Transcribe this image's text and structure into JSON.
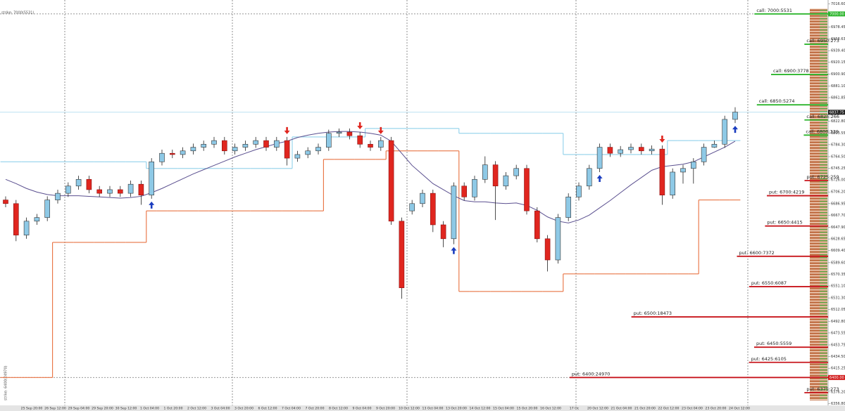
{
  "chart_data": {
    "type": "candlestick",
    "open": [
      6693,
      6687,
      6635,
      6658,
      6664,
      6693,
      6704,
      6716,
      6727,
      6710,
      6704,
      6710,
      6704,
      6719,
      6701,
      6756,
      6770,
      6768,
      6774,
      6780,
      6785,
      6791,
      6774,
      6780,
      6785,
      6791,
      6780,
      6791,
      6762,
      6768,
      6774,
      6780,
      6803,
      6805,
      6799,
      6785,
      6780,
      6791,
      6658,
      6675,
      6687,
      6704,
      6652,
      6629,
      6716,
      6698,
      6727,
      6751,
      6716,
      6733,
      6745,
      6675,
      6629,
      6594,
      6664,
      6698,
      6716,
      6745,
      6780,
      6770,
      6776,
      6780,
      6774,
      6777,
      6701,
      6739,
      6745,
      6756,
      6780,
      6785,
      6826
    ],
    "high": [
      6699,
      6693,
      6664,
      6670,
      6699,
      6710,
      6722,
      6733,
      6733,
      6716,
      6716,
      6716,
      6725,
      6725,
      6762,
      6776,
      6776,
      6780,
      6786,
      6791,
      6797,
      6797,
      6786,
      6791,
      6797,
      6797,
      6797,
      6797,
      6774,
      6780,
      6786,
      6809,
      6811,
      6811,
      6805,
      6791,
      6797,
      6797,
      6664,
      6693,
      6710,
      6710,
      6658,
      6722,
      6722,
      6733,
      6765,
      6757,
      6739,
      6751,
      6751,
      6681,
      6635,
      6670,
      6704,
      6722,
      6751,
      6786,
      6786,
      6782,
      6786,
      6786,
      6783,
      6783,
      6745,
      6751,
      6762,
      6786,
      6791,
      6832,
      6846
    ],
    "low": [
      6681,
      6625,
      6629,
      6652,
      6658,
      6687,
      6698,
      6710,
      6704,
      6698,
      6698,
      6698,
      6698,
      6685,
      6695,
      6750,
      6762,
      6762,
      6768,
      6774,
      6779,
      6768,
      6768,
      6774,
      6779,
      6774,
      6774,
      6750,
      6756,
      6762,
      6768,
      6774,
      6797,
      6793,
      6779,
      6774,
      6774,
      6652,
      6530,
      6669,
      6681,
      6640,
      6615,
      6620,
      6692,
      6692,
      6721,
      6660,
      6710,
      6727,
      6669,
      6623,
      6575,
      6588,
      6658,
      6692,
      6710,
      6739,
      6764,
      6764,
      6770,
      6768,
      6768,
      6685,
      6695,
      6720,
      6720,
      6750,
      6779,
      6779,
      6820
    ],
    "close": [
      6687,
      6635,
      6658,
      6664,
      6693,
      6704,
      6716,
      6727,
      6710,
      6704,
      6710,
      6704,
      6719,
      6701,
      6756,
      6770,
      6768,
      6774,
      6780,
      6785,
      6791,
      6774,
      6780,
      6785,
      6791,
      6780,
      6791,
      6762,
      6768,
      6774,
      6780,
      6803,
      6805,
      6799,
      6785,
      6780,
      6791,
      6658,
      6548,
      6687,
      6704,
      6652,
      6629,
      6716,
      6698,
      6727,
      6751,
      6716,
      6733,
      6745,
      6675,
      6629,
      6594,
      6664,
      6698,
      6716,
      6745,
      6780,
      6770,
      6776,
      6780,
      6774,
      6777,
      6701,
      6739,
      6745,
      6756,
      6780,
      6785,
      6826,
      6838
    ],
    "up_color": "#8ec9e6",
    "down_color": "#e0261f",
    "indicators": [
      {
        "color": "#e8703f",
        "style": "step",
        "values": [
          6400,
          6400,
          6400,
          6400,
          6400,
          6623,
          6623,
          6623,
          6623,
          6623,
          6623,
          6623,
          6623,
          6623,
          6675,
          6675,
          6675,
          6675,
          6675,
          6675,
          6675,
          6675,
          6675,
          6675,
          6675,
          6675,
          6675,
          6675,
          6675,
          6675,
          6675,
          6760,
          6760,
          6760,
          6760,
          6760,
          6760,
          6774,
          6774,
          6774,
          6774,
          6774,
          6774,
          6774,
          6542,
          6542,
          6542,
          6542,
          6542,
          6542,
          6542,
          6542,
          6542,
          6542,
          6571,
          6571,
          6571,
          6571,
          6571,
          6571,
          6571,
          6571,
          6571,
          6571,
          6571,
          6571,
          6571,
          6693,
          6693,
          6693,
          6693
        ]
      },
      {
        "color": "#8fd0ea",
        "style": "step",
        "values": [
          6756,
          6756,
          6756,
          6756,
          6756,
          6756,
          6756,
          6756,
          6756,
          6756,
          6756,
          6756,
          6756,
          6756,
          6745,
          6745,
          6745,
          6745,
          6745,
          6745,
          6745,
          6745,
          6745,
          6745,
          6745,
          6745,
          6745,
          6745,
          6797,
          6797,
          6797,
          6797,
          6797,
          6797,
          6797,
          6811,
          6811,
          6811,
          6811,
          6811,
          6811,
          6811,
          6811,
          6811,
          6803,
          6803,
          6803,
          6803,
          6803,
          6803,
          6803,
          6803,
          6803,
          6803,
          6768,
          6768,
          6768,
          6768,
          6768,
          6768,
          6768,
          6768,
          6768,
          6768,
          6791,
          6791,
          6791,
          6791,
          6791,
          6791,
          6791
        ]
      },
      {
        "color": "#5a4f8f",
        "style": "line",
        "values": [
          6727,
          6720,
          6712,
          6706,
          6702,
          6700,
          6700,
          6700,
          6699,
          6698,
          6697,
          6696,
          6697,
          6699,
          6705,
          6712,
          6720,
          6728,
          6736,
          6743,
          6750,
          6757,
          6764,
          6770,
          6776,
          6781,
          6786,
          6790,
          6796,
          6800,
          6803,
          6805,
          6806,
          6806,
          6805,
          6803,
          6800,
          6790,
          6770,
          6750,
          6735,
          6720,
          6710,
          6700,
          6692,
          6690,
          6690,
          6688,
          6687,
          6688,
          6684,
          6676,
          6665,
          6658,
          6655,
          6660,
          6668,
          6680,
          6692,
          6705,
          6718,
          6730,
          6742,
          6748,
          6750,
          6752,
          6756,
          6764,
          6772,
          6780,
          6790
        ]
      }
    ],
    "signals": [
      {
        "candle": 14,
        "dir": "up",
        "color": "#1a3cbf"
      },
      {
        "candle": 43,
        "dir": "up",
        "color": "#1a3cbf"
      },
      {
        "candle": 57,
        "dir": "up",
        "color": "#1a3cbf"
      },
      {
        "candle": 70,
        "dir": "up",
        "color": "#1a3cbf"
      },
      {
        "candle": 27,
        "dir": "down",
        "color": "#e0261f"
      },
      {
        "candle": 34,
        "dir": "down",
        "color": "#e0261f"
      },
      {
        "candle": 36,
        "dir": "down",
        "color": "#e0261f"
      },
      {
        "candle": 63,
        "dir": "down",
        "color": "#e0261f"
      }
    ],
    "levels": [
      {
        "label": "call: 7000:5531",
        "price": 7000,
        "oi": 5531,
        "color": "#2db52d"
      },
      {
        "label": "call: 6950:273",
        "price": 6950,
        "oi": 273,
        "color": "#2db52d"
      },
      {
        "label": "call: 6900:3778",
        "price": 6900,
        "oi": 3778,
        "color": "#2db52d"
      },
      {
        "label": "call: 6850:5274",
        "price": 6850,
        "oi": 5274,
        "color": "#2db52d"
      },
      {
        "label": "call: 6825:266",
        "price": 6825,
        "oi": 266,
        "color": "#2db52d"
      },
      {
        "label": "call: 6800:339",
        "price": 6800,
        "oi": 339,
        "color": "#2db52d"
      },
      {
        "label": "put: 6725:259",
        "price": 6725,
        "oi": 259,
        "color": "#c8161d"
      },
      {
        "label": "put: 6700:4219",
        "price": 6700,
        "oi": 4219,
        "color": "#c8161d"
      },
      {
        "label": "put: 6650:4415",
        "price": 6650,
        "oi": 4415,
        "color": "#c8161d"
      },
      {
        "label": "put: 6600:7372",
        "price": 6600,
        "oi": 7372,
        "color": "#c8161d"
      },
      {
        "label": "put: 6550:6087",
        "price": 6550,
        "oi": 6087,
        "color": "#c8161d"
      },
      {
        "label": "put: 6500:18473",
        "price": 6500,
        "oi": 18473,
        "color": "#c8161d"
      },
      {
        "label": "put: 6450:5559",
        "price": 6450,
        "oi": 5559,
        "color": "#c8161d"
      },
      {
        "label": "put: 6425:6105",
        "price": 6425,
        "oi": 6105,
        "color": "#c8161d"
      },
      {
        "label": "put: 6400:24970",
        "price": 6400,
        "oi": 24970,
        "color": "#c8161d"
      },
      {
        "label": "put: 6375:273",
        "price": 6375,
        "oi": 273,
        "color": "#c8161d"
      }
    ],
    "markers": [
      {
        "label": "7000.00",
        "value": 7000,
        "color": "#2db52d",
        "line": "dotted"
      },
      {
        "label": "6837.75",
        "value": 6837.75,
        "color": "#222222",
        "line": "solid"
      },
      {
        "label": "6400.00",
        "value": 6400,
        "color": "#d11a1a",
        "line": "dotted"
      }
    ],
    "notes": [
      "strike: 7000(5531)",
      "strike: 6400(24970)"
    ],
    "x_labels": [
      "25 Sep 20:00",
      "26 Sep 12:00",
      "29 Sep 04:00",
      "29 Sep 20:00",
      "30 Sep 12:00",
      "1 Oct 04:00",
      "1 Oct 20:00",
      "2 Oct 12:00",
      "3 Oct 04:00",
      "3 Oct 20:00",
      "6 Oct 12:00",
      "7 Oct 04:00",
      "7 Oct 20:00",
      "8 Oct 12:00",
      "9 Oct 04:00",
      "9 Oct 20:00",
      "10 Oct 12:00",
      "13 Oct 04:00",
      "13 Oct 20:00",
      "14 Oct 12:00",
      "15 Oct 04:00",
      "15 Oct 20:00",
      "16 Oct 12:00",
      "17 Oc",
      "20 Oct 12:00",
      "21 Oct 04:00",
      "21 Oct 20:00",
      "22 Oct 12:00",
      "23 Oct 04:00",
      "23 Oct 20:00",
      "24 Oct 12:00"
    ],
    "ylim": [
      6354,
      7023
    ],
    "yticks": [
      {
        "value": 7016.6,
        "label": "7016.60"
      },
      {
        "value": 6978.45,
        "label": "6978.45"
      },
      {
        "value": 6958.63,
        "label": "6958.63"
      },
      {
        "value": 6939.4,
        "label": "6939.40"
      },
      {
        "value": 6920.15,
        "label": "6920.15"
      },
      {
        "value": 6900.9,
        "label": "6900.90"
      },
      {
        "value": 6881.1,
        "label": "6881.10"
      },
      {
        "value": 6861.85,
        "label": "6861.85"
      },
      {
        "value": 6822.8,
        "label": "6822.80"
      },
      {
        "value": 6803.55,
        "label": "6803.55"
      },
      {
        "value": 6784.3,
        "label": "6784.30"
      },
      {
        "value": 6764.5,
        "label": "6764.50"
      },
      {
        "value": 6745.25,
        "label": "6745.25"
      },
      {
        "value": 6726,
        "label": "6726.00"
      },
      {
        "value": 6706.2,
        "label": "6706.20"
      },
      {
        "value": 6686.95,
        "label": "6686.95"
      },
      {
        "value": 6667.7,
        "label": "6667.70"
      },
      {
        "value": 6647.9,
        "label": "6647.90"
      },
      {
        "value": 6628.65,
        "label": "6628.65"
      },
      {
        "value": 6609.4,
        "label": "6609.40"
      },
      {
        "value": 6589.6,
        "label": "6589.60"
      },
      {
        "value": 6570.35,
        "label": "6570.35"
      },
      {
        "value": 6551.1,
        "label": "6551.10"
      },
      {
        "value": 6531.3,
        "label": "6531.30"
      },
      {
        "value": 6512.05,
        "label": "6512.05"
      },
      {
        "value": 6492.8,
        "label": "6492.80"
      },
      {
        "value": 6473.55,
        "label": "6473.55"
      },
      {
        "value": 6453.75,
        "label": "6453.75"
      },
      {
        "value": 6434.5,
        "label": "6434.50"
      },
      {
        "value": 6415.25,
        "label": "6415.25"
      },
      {
        "value": 6376.2,
        "label": "6376.20"
      },
      {
        "value": 6356.8,
        "label": "6356.80"
      }
    ]
  }
}
